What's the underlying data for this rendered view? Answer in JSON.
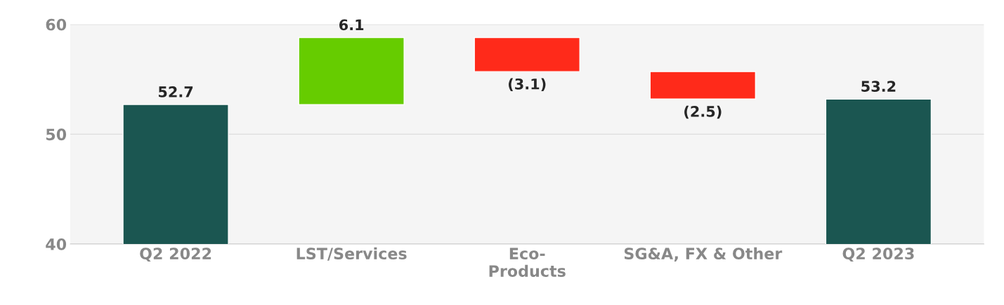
{
  "chart_data": {
    "type": "bar",
    "categories": [
      "Q2 2022",
      "LST/Services",
      "Eco-\nProducts",
      "SG&A, FX & Other",
      "Q2 2023"
    ],
    "values": [
      52.7,
      6.1,
      -3.1,
      -2.5,
      53.2
    ],
    "base": [
      0,
      52.7,
      58.8,
      55.7,
      0
    ],
    "colors": [
      "#1b5651",
      "#66cc00",
      "#ff2a1a",
      "#ff2a1a",
      "#1b5651"
    ],
    "value_labels": [
      "52.7",
      "6.1",
      "(3.1)",
      "(2.5)",
      "53.2"
    ],
    "ylim": [
      40,
      60
    ],
    "yticks": [
      40,
      50,
      60
    ],
    "grid": "y"
  }
}
